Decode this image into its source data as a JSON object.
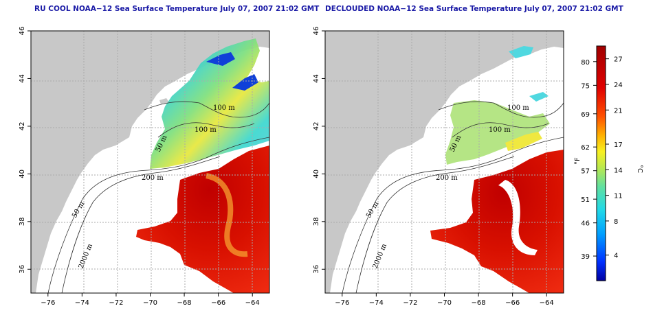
{
  "panels": [
    {
      "title": "RU COOL NOAA−12 Sea Surface Temperature July 07, 2007 21:02 GMT",
      "contour_labels": [
        "100 m",
        "100 m",
        "50 m",
        "200 m",
        "50 m",
        "2000 m"
      ]
    },
    {
      "title": "DECLOUDED NOAA−12 Sea Surface Temperature July 07, 2007 21:02 GMT",
      "contour_labels": [
        "100 m",
        "100 m",
        "50 m",
        "200 m",
        "50 m",
        "2000 m"
      ]
    }
  ],
  "map_axes": {
    "lon_ticks": [
      "−76",
      "−74",
      "−72",
      "−70",
      "−68",
      "−66",
      "−64"
    ],
    "lat_ticks": [
      "36",
      "38",
      "40",
      "42",
      "44",
      "46"
    ],
    "lon_range": [
      -77,
      -63
    ],
    "lat_range": [
      35,
      46
    ]
  },
  "colorbar": {
    "fahrenheit_ticks": [
      "80",
      "75",
      "69",
      "62",
      "57",
      "51",
      "46",
      "39"
    ],
    "celsius_ticks": [
      "27",
      "24",
      "21",
      "17",
      "14",
      "11",
      "8",
      "4"
    ],
    "label_f": "°F",
    "label_c": "°C",
    "colors": [
      "#0000b0",
      "#0040ff",
      "#00a0ff",
      "#30e0e0",
      "#60e0a0",
      "#b0e060",
      "#f0f020",
      "#ffa000",
      "#ff4000",
      "#e00000",
      "#a00000"
    ]
  },
  "colors": {
    "land": "#c8c8c8",
    "ocean_no_data": "#ffffff",
    "title": "#1a1aa6"
  }
}
